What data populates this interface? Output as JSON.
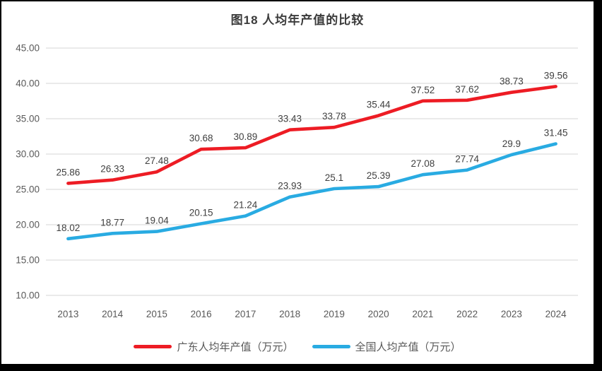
{
  "title": "图18 人均年产值的比较",
  "chart_data": {
    "type": "line",
    "title": "图18 人均年产值的比较",
    "categories": [
      "2013",
      "2014",
      "2015",
      "2016",
      "2017",
      "2018",
      "2019",
      "2020",
      "2021",
      "2022",
      "2023",
      "2024"
    ],
    "series": [
      {
        "name": "广东人均年产值（万元）",
        "color": "#ed1c24",
        "values": [
          25.86,
          26.33,
          27.48,
          30.68,
          30.89,
          33.43,
          33.78,
          35.44,
          37.52,
          37.62,
          38.73,
          39.56
        ]
      },
      {
        "name": "全国人均产值（万元）",
        "color": "#29abe2",
        "values": [
          18.02,
          18.77,
          19.04,
          20.15,
          21.24,
          23.93,
          25.1,
          25.39,
          27.08,
          27.74,
          29.9,
          31.45
        ]
      }
    ],
    "xlabel": "",
    "ylabel": "",
    "ylim": [
      10,
      45
    ],
    "ytick_step": 5,
    "ytick_labels": [
      "10.00",
      "15.00",
      "20.00",
      "25.00",
      "30.00",
      "35.00",
      "40.00",
      "45.00"
    ],
    "grid": true,
    "legend_position": "bottom",
    "colors": {
      "grid": "#dedede",
      "axis_text": "#595959",
      "data_label": "#404040",
      "background": "#ffffff",
      "frame": "#000000"
    }
  },
  "legend": {
    "items": [
      {
        "label": "广东人均年产值（万元）",
        "color": "#ed1c24"
      },
      {
        "label": "全国人均产值（万元）",
        "color": "#29abe2"
      }
    ]
  }
}
